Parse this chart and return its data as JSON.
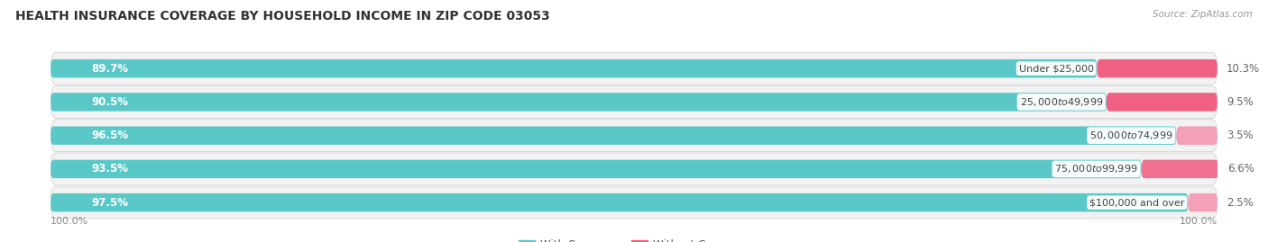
{
  "title": "HEALTH INSURANCE COVERAGE BY HOUSEHOLD INCOME IN ZIP CODE 03053",
  "source": "Source: ZipAtlas.com",
  "categories": [
    "Under $25,000",
    "$25,000 to $49,999",
    "$50,000 to $74,999",
    "$75,000 to $99,999",
    "$100,000 and over"
  ],
  "with_coverage": [
    89.7,
    90.5,
    96.5,
    93.5,
    97.5
  ],
  "without_coverage": [
    10.3,
    9.5,
    3.5,
    6.6,
    2.5
  ],
  "coverage_color": "#5BC8C8",
  "no_coverage_color_dark": "#F06080",
  "no_coverage_color_light": "#F4A0B8",
  "row_bg_color": "#E8E8E8",
  "row_inner_bg": "#F5F5F5",
  "title_fontsize": 10,
  "label_fontsize": 8.5,
  "tick_fontsize": 8,
  "legend_fontsize": 8.5,
  "source_fontsize": 7.5,
  "bar_height": 0.55,
  "xlim": [
    0,
    100
  ],
  "background_color": "#FFFFFF",
  "bottom_labels": [
    "100.0%",
    "100.0%"
  ]
}
